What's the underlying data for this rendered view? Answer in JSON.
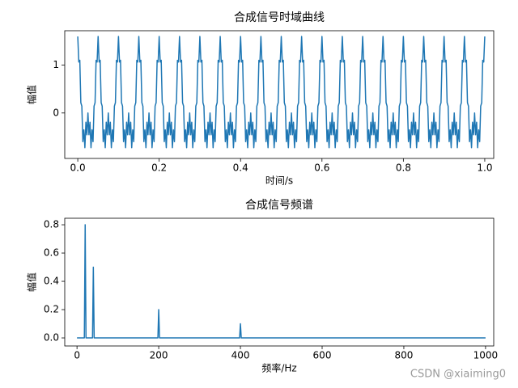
{
  "chart_data": [
    {
      "type": "line",
      "title": "合成信号时域曲线",
      "xlabel": "时间/s",
      "ylabel": "幅值",
      "xlim": [
        -0.032,
        1.022
      ],
      "ylim": [
        -0.95,
        1.72
      ],
      "xticks": [
        {
          "value": 0,
          "label": "0.0"
        },
        {
          "value": 0.2,
          "label": "0.2"
        },
        {
          "value": 0.4,
          "label": "0.4"
        },
        {
          "value": 0.6,
          "label": "0.6"
        },
        {
          "value": 0.8,
          "label": "0.8"
        },
        {
          "value": 1,
          "label": "1.0"
        }
      ],
      "yticks": [
        0,
        1
      ],
      "x": [
        0,
        0.0025,
        0.005,
        0.0075,
        0.01,
        0.0125,
        0.015,
        0.0175,
        0.02,
        0.0225,
        0.025,
        0.0275,
        0.03,
        0.0325,
        0.035,
        0.0375,
        0.04,
        0.0425,
        0.045,
        0.0475,
        0.05,
        0.0525,
        0.055,
        0.0575,
        0.06,
        0.0625,
        0.065,
        0.0675,
        0.07,
        0.0725,
        0.075,
        0.0775,
        0.08,
        0.0825,
        0.085,
        0.0875,
        0.09,
        0.0925,
        0.095,
        0.0975,
        0.1,
        0.1025,
        0.105,
        0.1075,
        0.11,
        0.1125,
        0.115,
        0.1175,
        0.12,
        0.1225,
        0.125,
        0.1275,
        0.13,
        0.1325,
        0.135,
        0.1375,
        0.14,
        0.1425,
        0.145,
        0.1475,
        0.15,
        0.1525,
        0.155,
        0.1575,
        0.16,
        0.1625,
        0.165,
        0.1675,
        0.17,
        0.1725,
        0.175,
        0.1775,
        0.18,
        0.1825,
        0.185,
        0.1875,
        0.19,
        0.1925,
        0.195,
        0.1975,
        0.2,
        0.2025,
        0.205,
        0.2075,
        0.21,
        0.2125,
        0.215,
        0.2175,
        0.22,
        0.2225,
        0.225,
        0.2275,
        0.23,
        0.2325,
        0.235,
        0.2375,
        0.24,
        0.2425,
        0.245,
        0.2475,
        0.25,
        0.2525,
        0.255,
        0.2575,
        0.26,
        0.2625,
        0.265,
        0.2675,
        0.27,
        0.2725,
        0.275,
        0.2775,
        0.28,
        0.2825,
        0.285,
        0.2875,
        0.29,
        0.2925,
        0.295,
        0.2975,
        0.3,
        0.3025,
        0.305,
        0.3075,
        0.31,
        0.3125,
        0.315,
        0.3175,
        0.32,
        0.3225,
        0.325,
        0.3275,
        0.33,
        0.3325,
        0.335,
        0.3375,
        0.34,
        0.3425,
        0.345,
        0.3475,
        0.35,
        0.3525,
        0.355,
        0.3575,
        0.36,
        0.3625,
        0.365,
        0.3675,
        0.37,
        0.3725,
        0.375,
        0.3775,
        0.38,
        0.3825,
        0.385,
        0.3875,
        0.39,
        0.3925,
        0.395,
        0.3975,
        0.4,
        0.4025,
        0.405,
        0.4075,
        0.41,
        0.4125,
        0.415,
        0.4175,
        0.42,
        0.4225,
        0.425,
        0.4275,
        0.43,
        0.4325,
        0.435,
        0.4375,
        0.44,
        0.4425,
        0.445,
        0.4475,
        0.45,
        0.4525,
        0.455,
        0.4575,
        0.46,
        0.4625,
        0.465,
        0.4675,
        0.47,
        0.4725,
        0.475,
        0.4775,
        0.48,
        0.4825,
        0.485,
        0.4875,
        0.49,
        0.4925,
        0.495,
        0.4975,
        0.5,
        0.5025,
        0.505,
        0.5075,
        0.51,
        0.5125,
        0.515,
        0.5175,
        0.52,
        0.5225,
        0.525,
        0.5275,
        0.53,
        0.5325,
        0.535,
        0.5375,
        0.54,
        0.5425,
        0.545,
        0.5475,
        0.55,
        0.5525,
        0.555,
        0.5575,
        0.56,
        0.5625,
        0.565,
        0.5675,
        0.57,
        0.5725,
        0.575,
        0.5775,
        0.58,
        0.5825,
        0.585,
        0.5875,
        0.59,
        0.5925,
        0.595,
        0.5975,
        0.6,
        0.6025,
        0.605,
        0.6075,
        0.61,
        0.6125,
        0.615,
        0.6175,
        0.62,
        0.6225,
        0.625,
        0.6275,
        0.63,
        0.6325,
        0.635,
        0.6375,
        0.64,
        0.6425,
        0.645,
        0.6475,
        0.65,
        0.6525,
        0.655,
        0.6575,
        0.66,
        0.6625,
        0.665,
        0.6675,
        0.67,
        0.6725,
        0.675,
        0.6775,
        0.68,
        0.6825,
        0.685,
        0.6875,
        0.69,
        0.6925,
        0.695,
        0.6975,
        0.7,
        0.7025,
        0.705,
        0.7075,
        0.71,
        0.7125,
        0.715,
        0.7175,
        0.72,
        0.7225,
        0.725,
        0.7275,
        0.73,
        0.7325,
        0.735,
        0.7375,
        0.74,
        0.7425,
        0.745,
        0.7475,
        0.75,
        0.7525,
        0.755,
        0.7575,
        0.76,
        0.7625,
        0.765,
        0.7675,
        0.77,
        0.7725,
        0.775,
        0.7775,
        0.78,
        0.7825,
        0.785,
        0.7875,
        0.79,
        0.7925,
        0.795,
        0.7975,
        0.8,
        0.8025,
        0.805,
        0.8075,
        0.81,
        0.8125,
        0.815,
        0.8175,
        0.82,
        0.8225,
        0.825,
        0.8275,
        0.83,
        0.8325,
        0.835,
        0.8375,
        0.84,
        0.8425,
        0.845,
        0.8475,
        0.85,
        0.8525,
        0.855,
        0.8575,
        0.86,
        0.8625,
        0.865,
        0.8675,
        0.87,
        0.8725,
        0.875,
        0.8775,
        0.88,
        0.8825,
        0.885,
        0.8875,
        0.89,
        0.8925,
        0.895,
        0.8975,
        0.9,
        0.9025,
        0.905,
        0.9075,
        0.91,
        0.9125,
        0.915,
        0.9175,
        0.92,
        0.9225,
        0.925,
        0.9275,
        0.93,
        0.9325,
        0.935,
        0.9375,
        0.94,
        0.9425,
        0.945,
        0.9475,
        0.95,
        0.9525,
        0.955,
        0.9575,
        0.96,
        0.9625,
        0.965,
        0.9675,
        0.97,
        0.9725,
        0.975,
        0.9775,
        0.98,
        0.9825,
        0.985,
        0.9875,
        0.99,
        0.9925,
        0.995,
        0.9975,
        1
      ],
      "series": [
        {
          "color": "#1f77b4",
          "values": [
            1.6,
            1.065,
            1.102,
            0.216,
            0.143,
            -0.6,
            -0.352,
            -0.725,
            -0.193,
            -0.456,
            0,
            -0.456,
            -0.193,
            -0.725,
            -0.352,
            -0.6,
            0.143,
            0.216,
            1.102,
            1.065,
            1.6,
            1.065,
            1.102,
            0.216,
            0.143,
            -0.6,
            -0.352,
            -0.725,
            -0.193,
            -0.456,
            0,
            -0.456,
            -0.193,
            -0.725,
            -0.352,
            -0.6,
            0.143,
            0.216,
            1.102,
            1.065,
            1.6,
            1.065,
            1.102,
            0.216,
            0.143,
            -0.6,
            -0.352,
            -0.725,
            -0.193,
            -0.456,
            0,
            -0.456,
            -0.193,
            -0.725,
            -0.352,
            -0.6,
            0.143,
            0.216,
            1.102,
            1.065,
            1.6,
            1.065,
            1.102,
            0.216,
            0.143,
            -0.6,
            -0.352,
            -0.725,
            -0.193,
            -0.456,
            0,
            -0.456,
            -0.193,
            -0.725,
            -0.352,
            -0.6,
            0.143,
            0.216,
            1.102,
            1.065,
            1.6,
            1.065,
            1.102,
            0.216,
            0.143,
            -0.6,
            -0.352,
            -0.725,
            -0.193,
            -0.456,
            0,
            -0.456,
            -0.193,
            -0.725,
            -0.352,
            -0.6,
            0.143,
            0.216,
            1.102,
            1.065,
            1.6,
            1.065,
            1.102,
            0.216,
            0.143,
            -0.6,
            -0.352,
            -0.725,
            -0.193,
            -0.456,
            0,
            -0.456,
            -0.193,
            -0.725,
            -0.352,
            -0.6,
            0.143,
            0.216,
            1.102,
            1.065,
            1.6,
            1.065,
            1.102,
            0.216,
            0.143,
            -0.6,
            -0.352,
            -0.725,
            -0.193,
            -0.456,
            0,
            -0.456,
            -0.193,
            -0.725,
            -0.352,
            -0.6,
            0.143,
            0.216,
            1.102,
            1.065,
            1.6,
            1.065,
            1.102,
            0.216,
            0.143,
            -0.6,
            -0.352,
            -0.725,
            -0.193,
            -0.456,
            0,
            -0.456,
            -0.193,
            -0.725,
            -0.352,
            -0.6,
            0.143,
            0.216,
            1.102,
            1.065,
            1.6,
            1.065,
            1.102,
            0.216,
            0.143,
            -0.6,
            -0.352,
            -0.725,
            -0.193,
            -0.456,
            0,
            -0.456,
            -0.193,
            -0.725,
            -0.352,
            -0.6,
            0.143,
            0.216,
            1.102,
            1.065,
            1.6,
            1.065,
            1.102,
            0.216,
            0.143,
            -0.6,
            -0.352,
            -0.725,
            -0.193,
            -0.456,
            0,
            -0.456,
            -0.193,
            -0.725,
            -0.352,
            -0.6,
            0.143,
            0.216,
            1.102,
            1.065,
            1.6,
            1.065,
            1.102,
            0.216,
            0.143,
            -0.6,
            -0.352,
            -0.725,
            -0.193,
            -0.456,
            0,
            -0.456,
            -0.193,
            -0.725,
            -0.352,
            -0.6,
            0.143,
            0.216,
            1.102,
            1.065,
            1.6,
            1.065,
            1.102,
            0.216,
            0.143,
            -0.6,
            -0.352,
            -0.725,
            -0.193,
            -0.456,
            0,
            -0.456,
            -0.193,
            -0.725,
            -0.352,
            -0.6,
            0.143,
            0.216,
            1.102,
            1.065,
            1.6,
            1.065,
            1.102,
            0.216,
            0.143,
            -0.6,
            -0.352,
            -0.725,
            -0.193,
            -0.456,
            0,
            -0.456,
            -0.193,
            -0.725,
            -0.352,
            -0.6,
            0.143,
            0.216,
            1.102,
            1.065,
            1.6,
            1.065,
            1.102,
            0.216,
            0.143,
            -0.6,
            -0.352,
            -0.725,
            -0.193,
            -0.456,
            0,
            -0.456,
            -0.193,
            -0.725,
            -0.352,
            -0.6,
            0.143,
            0.216,
            1.102,
            1.065,
            1.6,
            1.065,
            1.102,
            0.216,
            0.143,
            -0.6,
            -0.352,
            -0.725,
            -0.193,
            -0.456,
            0,
            -0.456,
            -0.193,
            -0.725,
            -0.352,
            -0.6,
            0.143,
            0.216,
            1.102,
            1.065,
            1.6,
            1.065,
            1.102,
            0.216,
            0.143,
            -0.6,
            -0.352,
            -0.725,
            -0.193,
            -0.456,
            0,
            -0.456,
            -0.193,
            -0.725,
            -0.352,
            -0.6,
            0.143,
            0.216,
            1.102,
            1.065,
            1.6,
            1.065,
            1.102,
            0.216,
            0.143,
            -0.6,
            -0.352,
            -0.725,
            -0.193,
            -0.456,
            0,
            -0.456,
            -0.193,
            -0.725,
            -0.352,
            -0.6,
            0.143,
            0.216,
            1.102,
            1.065,
            1.6,
            1.065,
            1.102,
            0.216,
            0.143,
            -0.6,
            -0.352,
            -0.725,
            -0.193,
            -0.456,
            0,
            -0.456,
            -0.193,
            -0.725,
            -0.352,
            -0.6,
            0.143,
            0.216,
            1.102,
            1.065,
            1.6,
            1.065,
            1.102,
            0.216,
            0.143,
            -0.6,
            -0.352,
            -0.725,
            -0.193,
            -0.456,
            0,
            -0.456,
            -0.193,
            -0.725,
            -0.352,
            -0.6,
            0.143,
            0.216,
            1.102,
            1.065,
            1.6,
            1.065,
            1.102,
            0.216,
            0.143,
            -0.6,
            -0.352,
            -0.725,
            -0.193,
            -0.456,
            0,
            -0.456,
            -0.193,
            -0.725,
            -0.352,
            -0.6,
            0.143,
            0.216,
            1.102,
            1.065,
            1.6
          ]
        }
      ]
    },
    {
      "type": "line",
      "title": "合成信号频谱",
      "xlabel": "频率/Hz",
      "ylabel": "幅值",
      "xlim": [
        -30,
        1020
      ],
      "ylim": [
        -0.057,
        0.846
      ],
      "xticks": [
        0,
        200,
        400,
        600,
        800,
        1000
      ],
      "yticks": [
        {
          "value": 0,
          "label": "0.0"
        },
        0.2,
        0.4,
        0.6,
        0.8
      ],
      "x": [
        0,
        18,
        20,
        22,
        38,
        40,
        42,
        198,
        200,
        202,
        398,
        400,
        402,
        1000
      ],
      "series": [
        {
          "color": "#1f77b4",
          "values": [
            0,
            0,
            0.8,
            0,
            0,
            0.5,
            0,
            0,
            0.2,
            0,
            0,
            0.1,
            0,
            0
          ]
        }
      ]
    }
  ],
  "watermark": "CSDN @xiaiming0"
}
